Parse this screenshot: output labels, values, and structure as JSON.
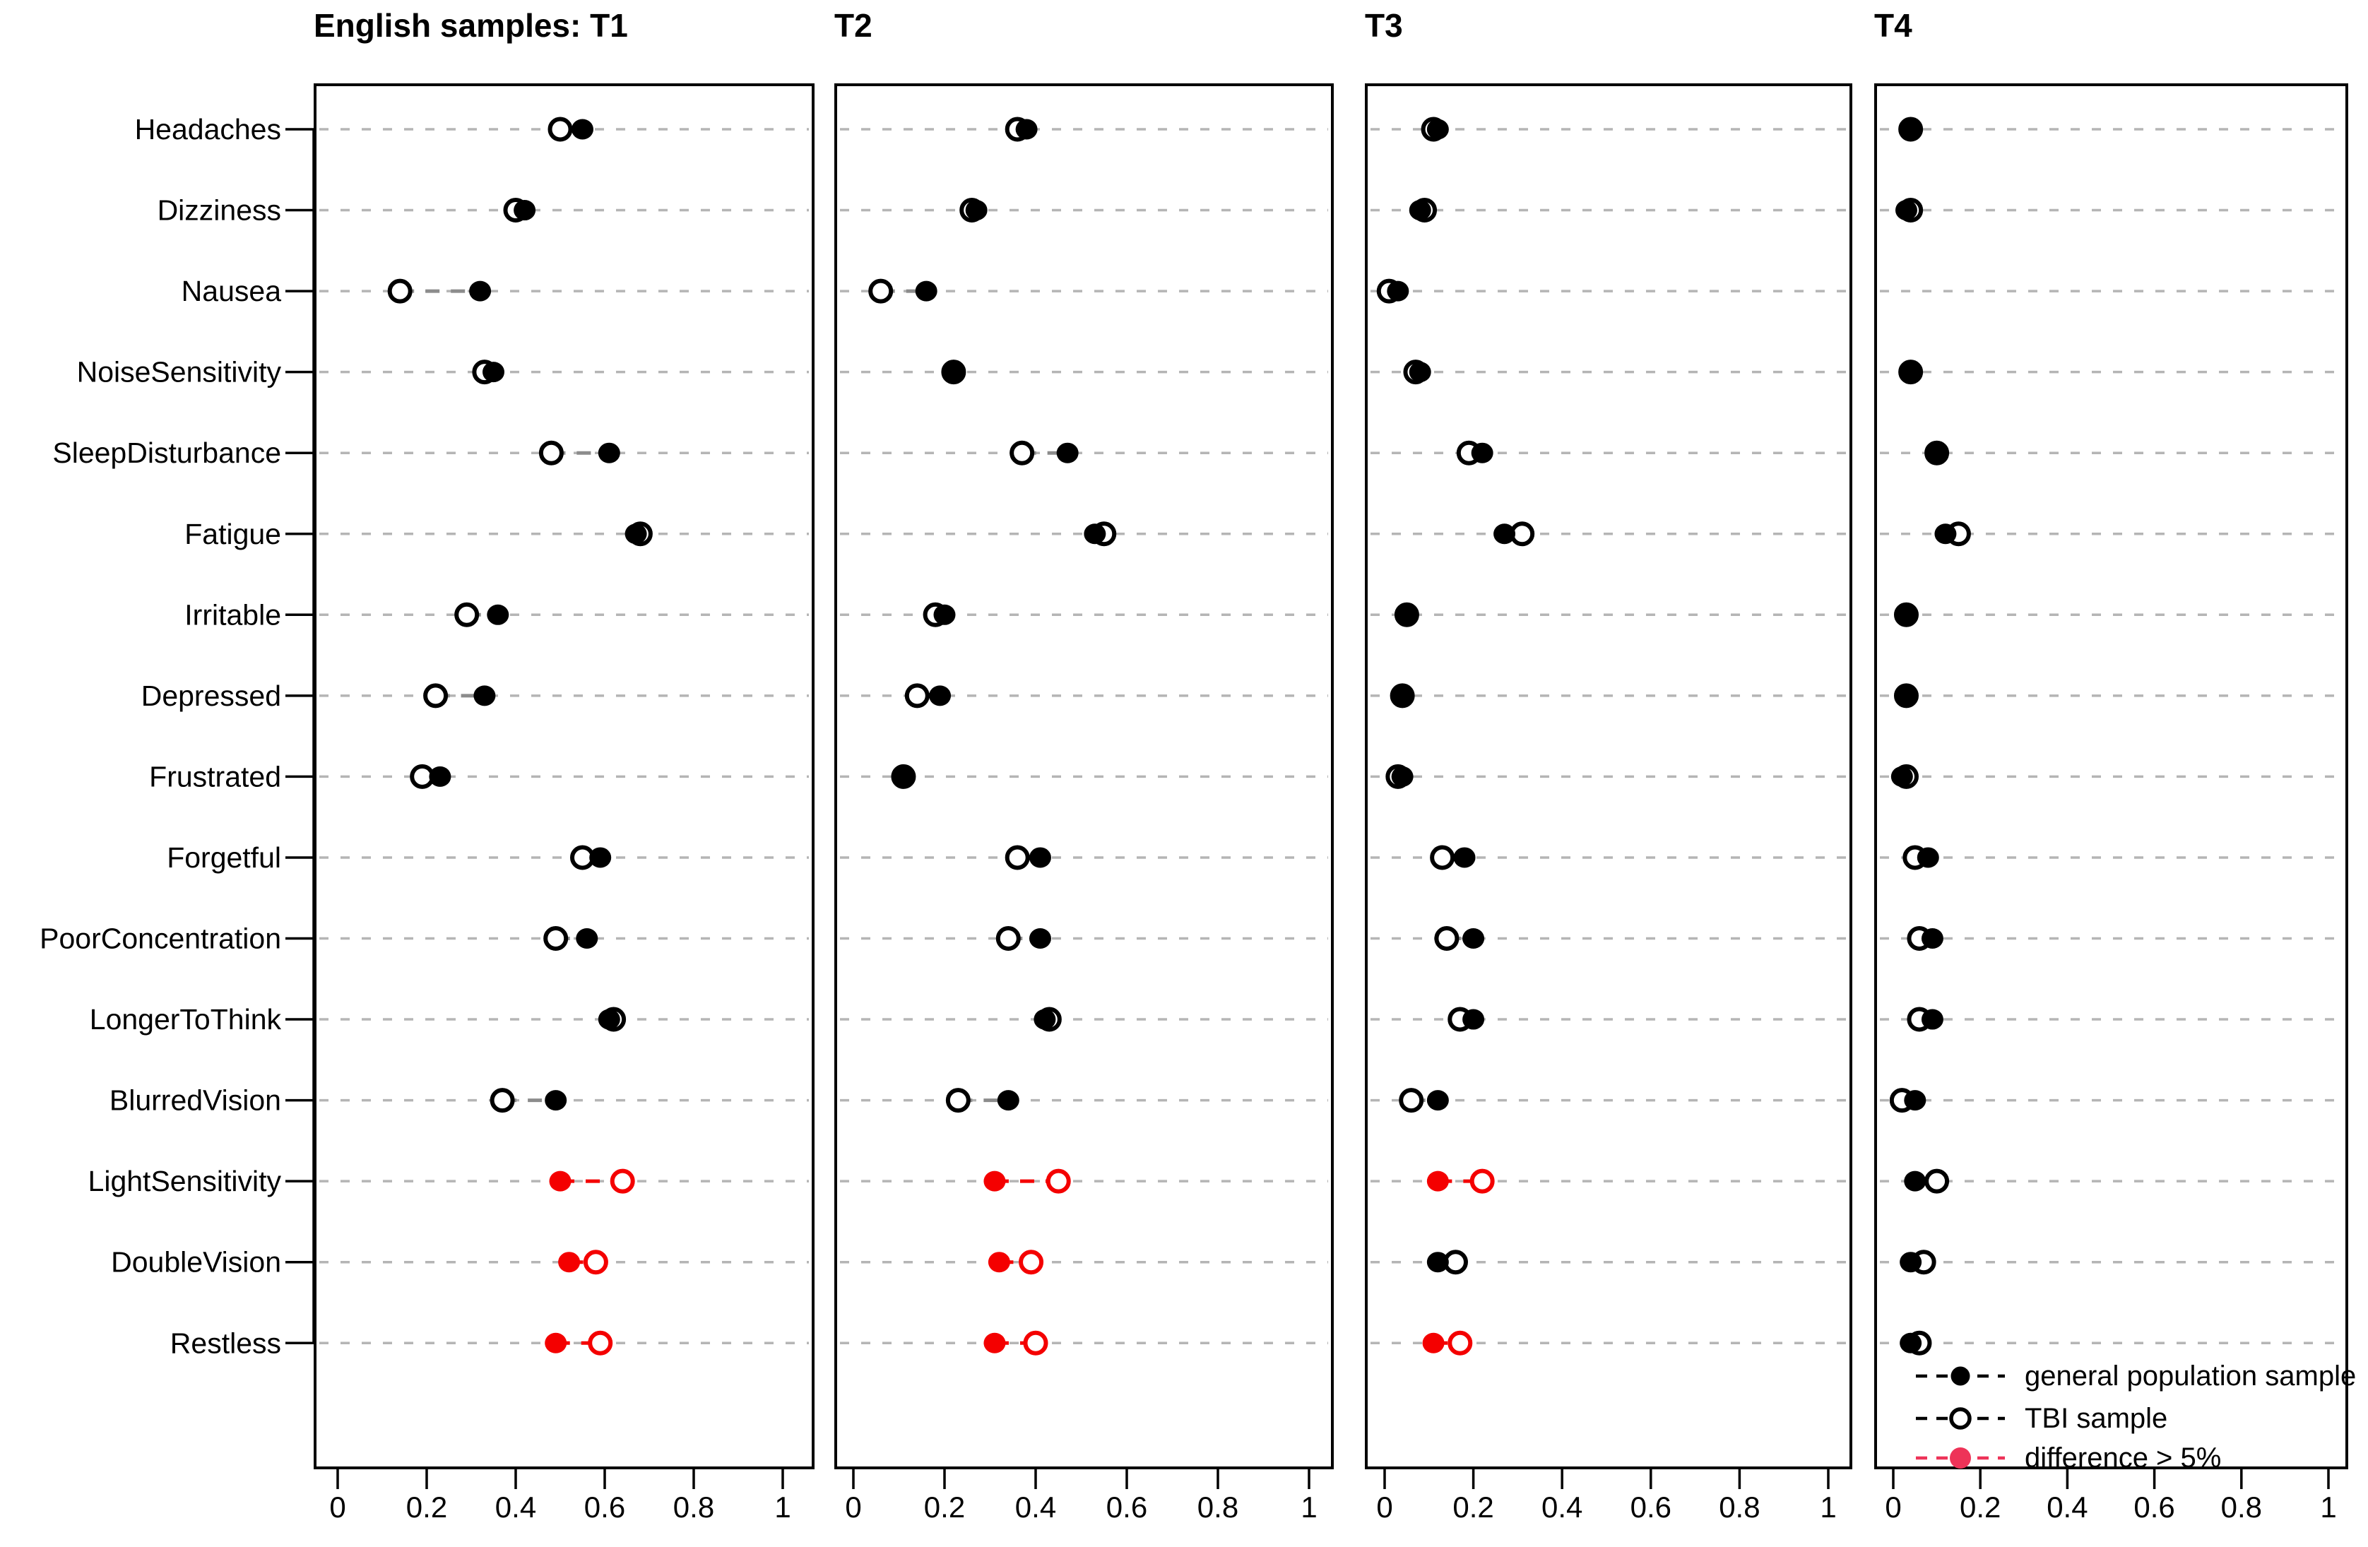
{
  "chart_data": {
    "type": "scatter",
    "subtype": "cleveland-dot-plot",
    "xlabel": "",
    "ylabel": "",
    "xlim": [
      0,
      1
    ],
    "x_tick_labels": [
      "0",
      "0.2",
      "0.4",
      "0.6",
      "0.8",
      "1"
    ],
    "x_tick_values": [
      0,
      0.2,
      0.4,
      0.6,
      0.8,
      1
    ],
    "grid": "horizontal-dashed",
    "legend_position": "bottom-right-inside-last-panel",
    "categories": [
      "Headaches",
      "Dizziness",
      "Nausea",
      "NoiseSensitivity",
      "SleepDisturbance",
      "Fatigue",
      "Irritable",
      "Depressed",
      "Frustrated",
      "Forgetful",
      "PoorConcentration",
      "LongerToThink",
      "BlurredVision",
      "LightSensitivity",
      "DoubleVision",
      "Restless"
    ],
    "panels": [
      {
        "title": "English samples: T1",
        "series": [
          {
            "name": "general population sample",
            "values": [
              0.55,
              0.42,
              0.32,
              0.35,
              0.61,
              0.67,
              0.36,
              0.33,
              0.23,
              0.59,
              0.56,
              0.61,
              0.49,
              0.5,
              0.52,
              0.49
            ]
          },
          {
            "name": "TBI sample",
            "values": [
              0.5,
              0.4,
              0.14,
              0.33,
              0.48,
              0.68,
              0.29,
              0.22,
              0.19,
              0.55,
              0.49,
              0.62,
              0.37,
              0.64,
              0.58,
              0.59
            ]
          }
        ],
        "difference_gt_5pct": [
          false,
          false,
          false,
          false,
          false,
          false,
          false,
          false,
          false,
          false,
          false,
          false,
          false,
          true,
          true,
          true
        ]
      },
      {
        "title": "T2",
        "series": [
          {
            "name": "general population sample",
            "values": [
              0.38,
              0.27,
              0.16,
              0.22,
              0.47,
              0.53,
              0.2,
              0.19,
              0.11,
              0.41,
              0.41,
              0.42,
              0.34,
              0.31,
              0.32,
              0.31
            ]
          },
          {
            "name": "TBI sample",
            "values": [
              0.36,
              0.26,
              0.06,
              0.22,
              0.37,
              0.55,
              0.18,
              0.14,
              0.11,
              0.36,
              0.34,
              0.43,
              0.23,
              0.45,
              0.39,
              0.4
            ]
          }
        ],
        "difference_gt_5pct": [
          false,
          false,
          false,
          false,
          false,
          false,
          false,
          false,
          false,
          false,
          false,
          false,
          false,
          true,
          true,
          true
        ]
      },
      {
        "title": "T3",
        "series": [
          {
            "name": "general population sample",
            "values": [
              0.12,
              0.08,
              0.03,
              0.08,
              0.22,
              0.27,
              0.05,
              0.04,
              0.04,
              0.18,
              0.2,
              0.2,
              0.12,
              0.12,
              0.12,
              0.11
            ]
          },
          {
            "name": "TBI sample",
            "values": [
              0.11,
              0.09,
              0.01,
              0.07,
              0.19,
              0.31,
              0.05,
              0.04,
              0.03,
              0.13,
              0.14,
              0.17,
              0.06,
              0.22,
              0.16,
              0.17
            ]
          }
        ],
        "difference_gt_5pct": [
          false,
          false,
          false,
          false,
          false,
          false,
          false,
          false,
          false,
          false,
          false,
          false,
          false,
          true,
          false,
          true
        ]
      },
      {
        "title": "T4",
        "series": [
          {
            "name": "general population sample",
            "values": [
              0.04,
              0.03,
              null,
              0.04,
              0.1,
              0.12,
              0.03,
              0.03,
              0.02,
              0.08,
              0.09,
              0.09,
              0.05,
              0.05,
              0.04,
              0.04
            ]
          },
          {
            "name": "TBI sample",
            "values": [
              0.04,
              0.04,
              null,
              0.04,
              0.1,
              0.15,
              0.03,
              0.03,
              0.03,
              0.05,
              0.06,
              0.06,
              0.02,
              0.1,
              0.07,
              0.06
            ]
          }
        ],
        "difference_gt_5pct": [
          false,
          false,
          false,
          false,
          false,
          false,
          false,
          false,
          false,
          false,
          false,
          false,
          false,
          false,
          false,
          false
        ]
      }
    ],
    "legend": [
      {
        "label": "general population sample",
        "marker": "filled-black-dot-dashed-line"
      },
      {
        "label": "TBI sample",
        "marker": "open-circle-dashed-line"
      },
      {
        "label": "difference > 5%",
        "marker": "filled-red-dot-dashed-line"
      }
    ],
    "colors": {
      "general": "#000000",
      "tbi_fill": "#ffffff",
      "tbi_stroke": "#000000",
      "difference": "#f40000",
      "legend_difference": "#ee3358",
      "gridline": "#b5b5b5",
      "connector": "#8c8c8c",
      "background": "#ffffff",
      "text": "#000000"
    }
  }
}
